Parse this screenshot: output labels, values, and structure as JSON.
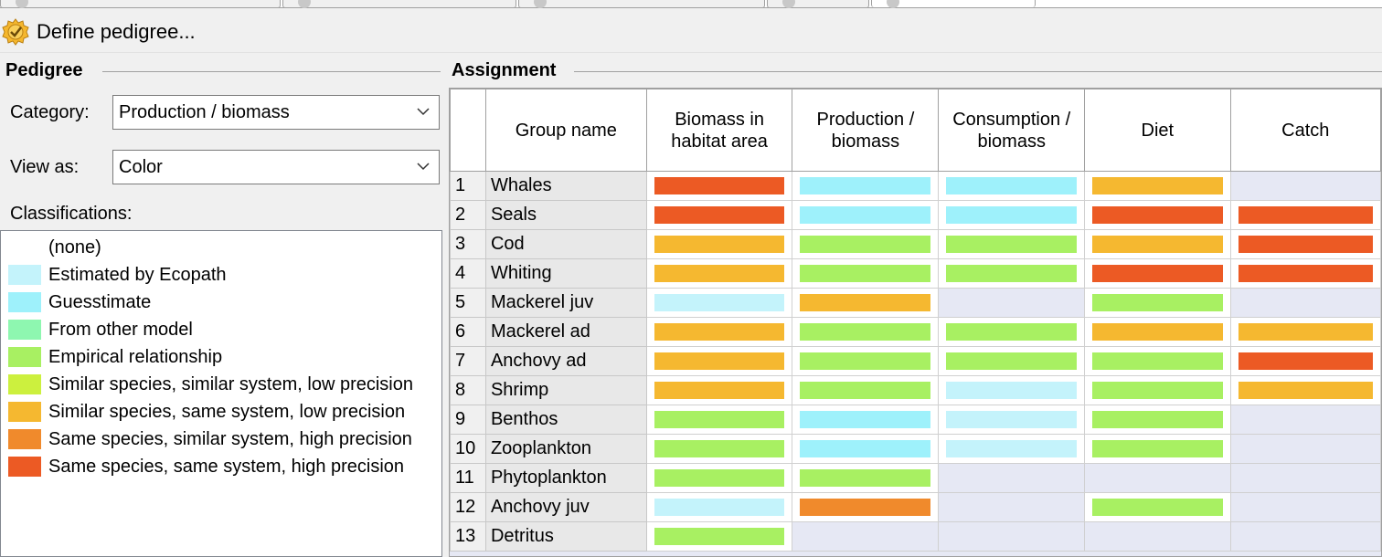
{
  "toolbar": {
    "define_label": "Define pedigree..."
  },
  "pedigree_group": {
    "title": "Pedigree",
    "category_label": "Category:",
    "category_value": "Production / biomass",
    "viewas_label": "View as:",
    "viewas_value": "Color",
    "classifications_label": "Classifications:",
    "classifications": [
      {
        "label": "(none)",
        "color": ""
      },
      {
        "label": "Estimated by Ecopath",
        "color": "#c4f3fb"
      },
      {
        "label": "Guesstimate",
        "color": "#9ef1fb"
      },
      {
        "label": "From other model",
        "color": "#8ef7b0"
      },
      {
        "label": "Empirical relationship",
        "color": "#a8f062"
      },
      {
        "label": "Similar species, similar system, low precision",
        "color": "#ccf03e"
      },
      {
        "label": "Similar species, same system, low precision",
        "color": "#f5b830"
      },
      {
        "label": "Same species, similar system, high precision",
        "color": "#f08a2c"
      },
      {
        "label": "Same species, same system, high precision",
        "color": "#ec5a24"
      }
    ]
  },
  "assignment_group": {
    "title": "Assignment",
    "columns": [
      "Group name",
      "Biomass in habitat area",
      "Production / biomass",
      "Consumption / biomass",
      "Diet",
      "Catch"
    ],
    "rows": [
      {
        "num": "1",
        "name": "Whales",
        "cells": [
          8,
          2,
          2,
          6,
          null
        ]
      },
      {
        "num": "2",
        "name": "Seals",
        "cells": [
          8,
          2,
          2,
          8,
          8
        ]
      },
      {
        "num": "3",
        "name": "Cod",
        "cells": [
          6,
          4,
          4,
          6,
          8
        ]
      },
      {
        "num": "4",
        "name": "Whiting",
        "cells": [
          6,
          4,
          4,
          8,
          8
        ]
      },
      {
        "num": "5",
        "name": "Mackerel juv",
        "cells": [
          1,
          6,
          null,
          4,
          null
        ]
      },
      {
        "num": "6",
        "name": "Mackerel ad",
        "cells": [
          6,
          4,
          4,
          6,
          6
        ]
      },
      {
        "num": "7",
        "name": "Anchovy ad",
        "cells": [
          6,
          4,
          4,
          4,
          8
        ]
      },
      {
        "num": "8",
        "name": "Shrimp",
        "cells": [
          6,
          4,
          1,
          4,
          6
        ]
      },
      {
        "num": "9",
        "name": "Benthos",
        "cells": [
          4,
          2,
          1,
          4,
          null
        ]
      },
      {
        "num": "10",
        "name": "Zooplankton",
        "cells": [
          4,
          2,
          1,
          4,
          null
        ]
      },
      {
        "num": "11",
        "name": "Phytoplankton",
        "cells": [
          4,
          4,
          null,
          null,
          null
        ]
      },
      {
        "num": "12",
        "name": "Anchovy juv",
        "cells": [
          1,
          7,
          null,
          4,
          null
        ]
      },
      {
        "num": "13",
        "name": "Detritus",
        "cells": [
          4,
          null,
          null,
          null,
          null
        ]
      }
    ]
  }
}
